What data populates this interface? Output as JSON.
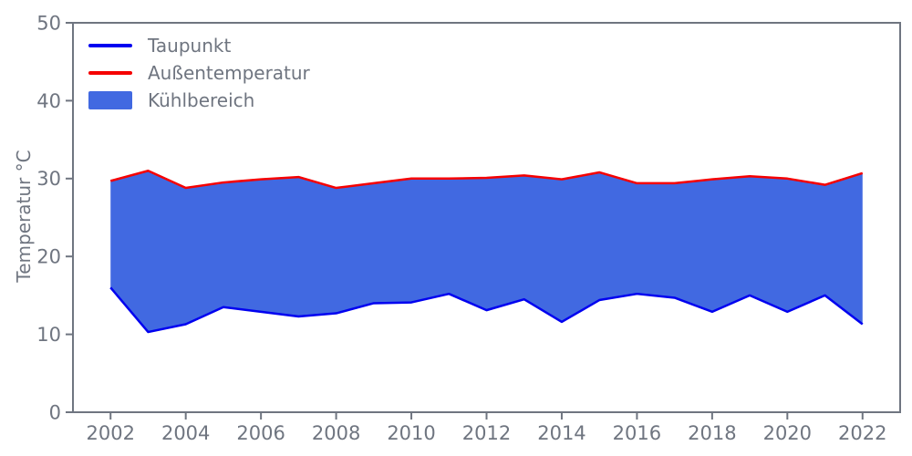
{
  "chart_data": {
    "type": "area",
    "title": "",
    "xlabel": "",
    "ylabel": "Temperatur °C",
    "x": [
      2002,
      2003,
      2004,
      2005,
      2006,
      2007,
      2008,
      2009,
      2010,
      2011,
      2012,
      2013,
      2014,
      2015,
      2016,
      2017,
      2018,
      2019,
      2020,
      2021,
      2022
    ],
    "series": [
      {
        "name": "Taupunkt",
        "color": "#0000f0",
        "values": [
          16.0,
          10.3,
          11.3,
          13.5,
          12.9,
          12.3,
          12.7,
          14.0,
          14.1,
          15.2,
          13.1,
          14.5,
          11.6,
          14.4,
          15.2,
          14.7,
          12.9,
          15.0,
          12.9,
          15.0,
          11.3
        ]
      },
      {
        "name": "Außentemperatur",
        "color": "#f50000",
        "values": [
          29.7,
          31.0,
          28.8,
          29.5,
          29.9,
          30.2,
          28.8,
          29.4,
          30.0,
          30.0,
          30.1,
          30.4,
          29.9,
          30.8,
          29.4,
          29.4,
          29.9,
          30.3,
          30.0,
          29.2,
          30.7
        ]
      }
    ],
    "fill_between": {
      "name": "Kühlbereich",
      "upper_series": "Außentemperatur",
      "lower_series": "Taupunkt",
      "color": "#4169e1"
    },
    "xlim": [
      2001,
      2023
    ],
    "ylim": [
      0,
      50
    ],
    "xticks": [
      2002,
      2004,
      2006,
      2008,
      2010,
      2012,
      2014,
      2016,
      2018,
      2020,
      2022
    ],
    "xtick_labels": [
      "2002",
      "2004",
      "2006",
      "2008",
      "2010",
      "2012",
      "2014",
      "2016",
      "2018",
      "2020",
      "2022"
    ],
    "yticks": [
      0,
      10,
      20,
      30,
      40,
      50
    ],
    "ytick_labels": [
      "0",
      "10",
      "20",
      "30",
      "40",
      "50"
    ],
    "grid": false,
    "legend_position": "upper-left",
    "axis_color": "#6f7580",
    "line_width": 2.5,
    "legend": [
      {
        "label": "Taupunkt",
        "type": "line",
        "color": "#0000f0"
      },
      {
        "label": "Außentemperatur",
        "type": "line",
        "color": "#f50000"
      },
      {
        "label": "Kühlbereich",
        "type": "patch",
        "color": "#4169e1"
      }
    ]
  }
}
